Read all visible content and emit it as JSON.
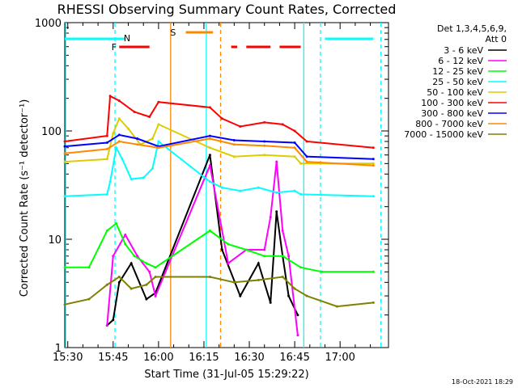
{
  "chart_data": {
    "type": "line",
    "title": "RHESSI Observing Summary Count Rates, Corrected",
    "xlabel": "Start Time (31-Jul-05 15:29:22)",
    "ylabel": "Corrected Count Rate (s⁻¹ detector⁻¹)",
    "yscale": "log",
    "ylim": [
      1,
      1000
    ],
    "xlim_min": [
      0,
      107
    ],
    "x_ticks": [
      {
        "min": 1,
        "label": "15:30"
      },
      {
        "min": 16,
        "label": "15:45"
      },
      {
        "min": 31,
        "label": "16:00"
      },
      {
        "min": 46,
        "label": "16:15"
      },
      {
        "min": 61,
        "label": "16:30"
      },
      {
        "min": 76,
        "label": "16:45"
      },
      {
        "min": 91,
        "label": "17:00"
      }
    ],
    "y_ticks": [
      {
        "value": 1,
        "label": "1"
      },
      {
        "value": 10,
        "label": "10"
      },
      {
        "value": 100,
        "label": "100"
      },
      {
        "value": 1000,
        "label": "1000"
      }
    ],
    "legend_header": [
      "Det 1,3,4,5,6,9,",
      "Att 0"
    ],
    "series": [
      {
        "name": "3 - 6 keV",
        "color": "#000000",
        "values": [
          [
            14,
            1.6
          ],
          [
            16,
            1.8
          ],
          [
            18,
            4
          ],
          [
            22,
            6
          ],
          [
            27,
            2.8
          ],
          [
            30,
            3.2
          ],
          [
            48,
            60
          ],
          [
            52,
            8
          ],
          [
            58,
            3
          ],
          [
            64,
            6
          ],
          [
            68,
            2.6
          ],
          [
            70,
            18
          ],
          [
            72,
            7
          ],
          [
            74,
            3
          ],
          [
            77,
            2
          ]
        ]
      },
      {
        "name": "6 - 12 keV",
        "color": "#ff00ff",
        "values": [
          [
            14,
            1.6
          ],
          [
            16,
            7
          ],
          [
            20,
            11
          ],
          [
            24,
            7
          ],
          [
            28,
            5
          ],
          [
            30,
            3
          ],
          [
            48,
            48
          ],
          [
            54,
            6
          ],
          [
            60,
            8
          ],
          [
            66,
            8
          ],
          [
            68,
            16
          ],
          [
            70,
            52
          ],
          [
            72,
            12
          ],
          [
            74,
            7
          ],
          [
            77,
            1.3
          ]
        ]
      },
      {
        "name": "12 - 25 keV",
        "color": "#00ff00",
        "values": [
          [
            0,
            5.5
          ],
          [
            8,
            5.5
          ],
          [
            14,
            12
          ],
          [
            17,
            14
          ],
          [
            20,
            9
          ],
          [
            23,
            7
          ],
          [
            27,
            6
          ],
          [
            30,
            5.5
          ],
          [
            48,
            12
          ],
          [
            54,
            9
          ],
          [
            60,
            8
          ],
          [
            66,
            7
          ],
          [
            72,
            7
          ],
          [
            78,
            5.5
          ],
          [
            85,
            5
          ],
          [
            102,
            5
          ]
        ]
      },
      {
        "name": "25 - 50 keV",
        "color": "#00ffff",
        "values": [
          [
            0,
            25
          ],
          [
            14,
            26
          ],
          [
            15,
            34
          ],
          [
            17,
            70
          ],
          [
            19,
            55
          ],
          [
            22,
            36
          ],
          [
            26,
            37
          ],
          [
            29,
            45
          ],
          [
            31,
            80
          ],
          [
            48,
            34
          ],
          [
            52,
            30
          ],
          [
            58,
            28
          ],
          [
            64,
            30
          ],
          [
            70,
            27
          ],
          [
            76,
            28
          ],
          [
            78,
            26
          ],
          [
            102,
            25
          ]
        ]
      },
      {
        "name": "50 - 100 keV",
        "color": "#ddcc00",
        "values": [
          [
            0,
            52
          ],
          [
            14,
            55
          ],
          [
            16,
            95
          ],
          [
            18,
            130
          ],
          [
            21,
            105
          ],
          [
            25,
            75
          ],
          [
            29,
            85
          ],
          [
            31,
            115
          ],
          [
            48,
            70
          ],
          [
            56,
            58
          ],
          [
            66,
            60
          ],
          [
            76,
            58
          ],
          [
            78,
            50
          ],
          [
            102,
            50
          ]
        ]
      },
      {
        "name": "100 - 300 keV",
        "color": "#ff0000",
        "values": [
          [
            0,
            80
          ],
          [
            14,
            90
          ],
          [
            15,
            210
          ],
          [
            18,
            190
          ],
          [
            23,
            150
          ],
          [
            28,
            135
          ],
          [
            31,
            185
          ],
          [
            48,
            165
          ],
          [
            52,
            130
          ],
          [
            58,
            110
          ],
          [
            66,
            120
          ],
          [
            72,
            115
          ],
          [
            76,
            100
          ],
          [
            80,
            80
          ],
          [
            102,
            70
          ]
        ]
      },
      {
        "name": "300 - 800 keV",
        "color": "#0000ff",
        "values": [
          [
            0,
            72
          ],
          [
            14,
            78
          ],
          [
            18,
            92
          ],
          [
            24,
            85
          ],
          [
            31,
            72
          ],
          [
            48,
            90
          ],
          [
            56,
            82
          ],
          [
            66,
            80
          ],
          [
            76,
            78
          ],
          [
            80,
            58
          ],
          [
            102,
            55
          ]
        ]
      },
      {
        "name": "800 - 7000 keV",
        "color": "#ff8800",
        "values": [
          [
            0,
            62
          ],
          [
            14,
            68
          ],
          [
            18,
            80
          ],
          [
            24,
            75
          ],
          [
            31,
            70
          ],
          [
            48,
            85
          ],
          [
            56,
            75
          ],
          [
            66,
            73
          ],
          [
            76,
            70
          ],
          [
            80,
            52
          ],
          [
            102,
            48
          ]
        ]
      },
      {
        "name": "7000 - 15000 keV",
        "color": "#808000",
        "values": [
          [
            0,
            2.5
          ],
          [
            8,
            2.8
          ],
          [
            14,
            3.8
          ],
          [
            18,
            4.5
          ],
          [
            22,
            3.5
          ],
          [
            27,
            3.8
          ],
          [
            30,
            4.5
          ],
          [
            48,
            4.5
          ],
          [
            56,
            4
          ],
          [
            64,
            4.2
          ],
          [
            72,
            4.5
          ],
          [
            76,
            3.5
          ],
          [
            80,
            3
          ],
          [
            90,
            2.4
          ],
          [
            102,
            2.6
          ]
        ]
      }
    ],
    "annotations": {
      "attenuator_bars": [
        [
          0,
          20
        ],
        [
          86,
          102
        ]
      ],
      "flare_label": "F",
      "flare_bars": [
        [
          18,
          28
        ],
        [
          55,
          57
        ],
        [
          60,
          68
        ],
        [
          71,
          78
        ]
      ],
      "saa_label": "S",
      "saa_bar": [
        40,
        49
      ],
      "night_label": "N"
    },
    "footer_date": "18-Oct-2021 18:29"
  }
}
